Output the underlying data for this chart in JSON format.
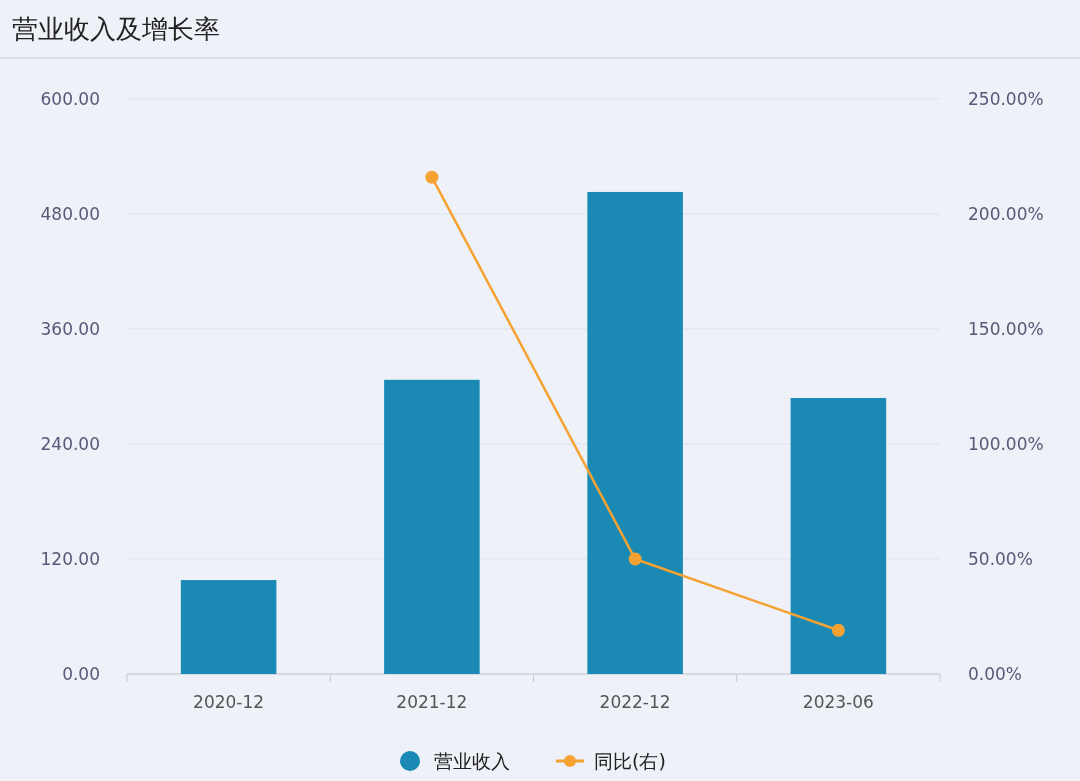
{
  "chart_data": {
    "type": "bar",
    "title": "营业收入及增长率",
    "categories": [
      "2020-12",
      "2021-12",
      "2022-12",
      "2023-06"
    ],
    "series": [
      {
        "name": "营业收入",
        "color": "#1a8ab5",
        "values": [
          98,
          307,
          503,
          288
        ]
      },
      {
        "name": "同比(右)",
        "type": "line",
        "axis": "y2",
        "color": "#f5a233",
        "values": [
          null,
          216,
          50,
          19
        ]
      }
    ],
    "ylim": [
      0,
      600
    ],
    "yticks": [
      {
        "value": 0,
        "label": "0.00"
      },
      {
        "value": 120,
        "label": "120.00"
      },
      {
        "value": 240,
        "label": "240.00"
      },
      {
        "value": 360,
        "label": "360.00"
      },
      {
        "value": 480,
        "label": "480.00"
      },
      {
        "value": 600,
        "label": "600.00"
      }
    ],
    "y2lim": [
      0,
      250
    ],
    "y2ticks": [
      {
        "value": 0,
        "label": "0.00%"
      },
      {
        "value": 50,
        "label": "50.00%"
      },
      {
        "value": 100,
        "label": "100.00%"
      },
      {
        "value": 150,
        "label": "150.00%"
      },
      {
        "value": 200,
        "label": "200.00%"
      },
      {
        "value": 250,
        "label": "250.00%"
      }
    ],
    "grid": "y",
    "legend": "bottom",
    "marker": "circle"
  }
}
